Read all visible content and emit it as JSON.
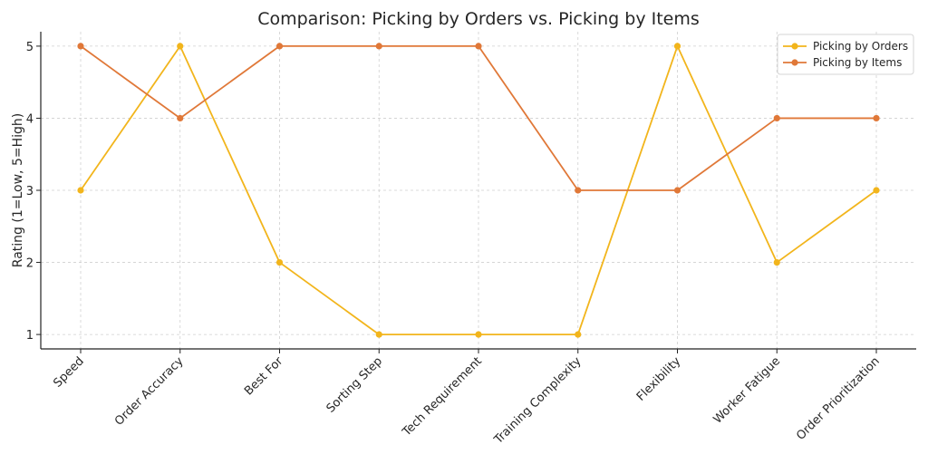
{
  "chart_data": {
    "type": "line",
    "title": "Comparison: Picking by Orders vs. Picking by Items",
    "xlabel": "",
    "ylabel": "Rating (1=Low, 5=High)",
    "categories": [
      "Speed",
      "Order Accuracy",
      "Best For",
      "Sorting Step",
      "Tech Requirement",
      "Training Complexity",
      "Flexibility",
      "Worker Fatigue",
      "Order Prioritization"
    ],
    "yticks": [
      "1",
      "2",
      "3",
      "4",
      "5"
    ],
    "ylim": [
      0.8,
      5.2
    ],
    "grid": true,
    "legend_position": "top-right",
    "series": [
      {
        "name": "Picking by Orders",
        "color": "#F2B51C",
        "values": [
          3,
          5,
          2,
          1,
          1,
          1,
          5,
          2,
          3
        ]
      },
      {
        "name": "Picking by Items",
        "color": "#E07838",
        "values": [
          5,
          4,
          5,
          5,
          5,
          3,
          3,
          4,
          4
        ]
      }
    ]
  }
}
